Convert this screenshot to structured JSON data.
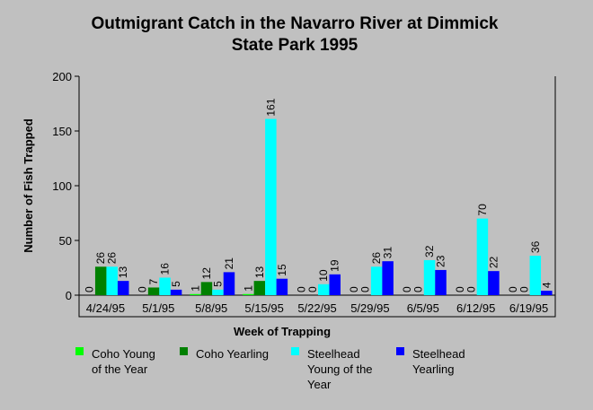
{
  "chart_data": {
    "type": "bar",
    "title_lines": [
      "Outmigrant Catch in the Navarro River at Dimmick",
      "State Park 1995"
    ],
    "xlabel": "Week of Trapping",
    "ylabel": "Number of Fish Trapped",
    "ylim": [
      0,
      200
    ],
    "yticks": [
      0,
      50,
      100,
      150,
      200
    ],
    "grid": false,
    "legend_position": "bottom",
    "categories": [
      "4/24/95",
      "5/1/95",
      "5/8/95",
      "5/15/95",
      "5/22/95",
      "5/29/95",
      "6/5/95",
      "6/12/95",
      "6/19/95"
    ],
    "series": [
      {
        "name": "Coho Young of the Year",
        "legend_lines": [
          "Coho Young",
          "of the Year"
        ],
        "color": "#00ff00",
        "values": [
          0,
          0,
          1,
          1,
          0,
          0,
          0,
          0,
          0
        ]
      },
      {
        "name": "Coho Yearling",
        "legend_lines": [
          "Coho Yearling"
        ],
        "color": "#008000",
        "values": [
          26,
          7,
          12,
          13,
          0,
          0,
          0,
          0,
          0
        ]
      },
      {
        "name": "Steelhead Young of the Year",
        "legend_lines": [
          "Steelhead",
          "Young of the",
          "Year"
        ],
        "color": "#00ffff",
        "values": [
          26,
          16,
          5,
          161,
          10,
          26,
          32,
          70,
          36
        ]
      },
      {
        "name": "Steelhead Yearling",
        "legend_lines": [
          "Steelhead",
          "Yearling"
        ],
        "color": "#0000ff",
        "values": [
          13,
          5,
          21,
          15,
          19,
          31,
          23,
          22,
          4
        ]
      }
    ]
  }
}
